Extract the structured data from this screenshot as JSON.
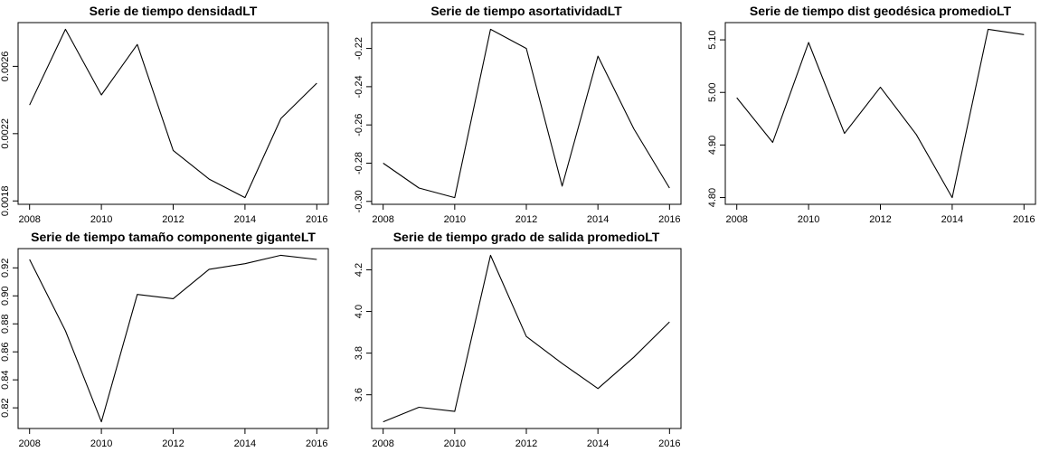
{
  "chart_data": [
    {
      "type": "line",
      "title": "Serie de tiempo densidadLT",
      "x": [
        2008,
        2009,
        2010,
        2011,
        2012,
        2013,
        2014,
        2015,
        2016
      ],
      "values": [
        0.00237,
        0.00282,
        0.00243,
        0.00273,
        0.0021,
        0.00193,
        0.00182,
        0.00229,
        0.0025
      ],
      "xlim": [
        2008,
        2016
      ],
      "ylim": [
        0.00182,
        0.00282
      ],
      "xticks": [
        2008,
        2010,
        2012,
        2014,
        2016
      ],
      "yticks": [
        0.0018,
        0.0022,
        0.0026
      ],
      "ytick_labels": [
        "0.0018",
        "0.0022",
        "0.0026"
      ]
    },
    {
      "type": "line",
      "title": "Serie de tiempo asortatividadLT",
      "x": [
        2008,
        2009,
        2010,
        2011,
        2012,
        2013,
        2014,
        2015,
        2016
      ],
      "values": [
        -0.28,
        -0.293,
        -0.298,
        -0.21,
        -0.22,
        -0.292,
        -0.224,
        -0.262,
        -0.293
      ],
      "xlim": [
        2008,
        2016
      ],
      "ylim": [
        -0.298,
        -0.21
      ],
      "xticks": [
        2008,
        2010,
        2012,
        2014,
        2016
      ],
      "yticks": [
        -0.3,
        -0.28,
        -0.26,
        -0.24,
        -0.22
      ],
      "ytick_labels": [
        "-0.30",
        "-0.28",
        "-0.26",
        "-0.24",
        "-0.22"
      ]
    },
    {
      "type": "line",
      "title": "Serie de tiempo dist geodésica promedioLT",
      "x": [
        2008,
        2009,
        2010,
        2011,
        2012,
        2013,
        2014,
        2015,
        2016
      ],
      "values": [
        4.99,
        4.905,
        5.095,
        4.922,
        5.01,
        4.92,
        4.8,
        5.12,
        5.11
      ],
      "xlim": [
        2008,
        2016
      ],
      "ylim": [
        4.8,
        5.12
      ],
      "xticks": [
        2008,
        2010,
        2012,
        2014,
        2016
      ],
      "yticks": [
        4.8,
        4.9,
        5.0,
        5.1
      ],
      "ytick_labels": [
        "4.80",
        "4.90",
        "5.00",
        "5.10"
      ]
    },
    {
      "type": "line",
      "title": "Serie de tiempo tamaño componente giganteLT",
      "x": [
        2008,
        2009,
        2010,
        2011,
        2012,
        2013,
        2014,
        2015,
        2016
      ],
      "values": [
        0.926,
        0.875,
        0.81,
        0.901,
        0.898,
        0.919,
        0.923,
        0.929,
        0.926
      ],
      "xlim": [
        2008,
        2016
      ],
      "ylim": [
        0.81,
        0.929
      ],
      "xticks": [
        2008,
        2010,
        2012,
        2014,
        2016
      ],
      "yticks": [
        0.82,
        0.84,
        0.86,
        0.88,
        0.9,
        0.92
      ],
      "ytick_labels": [
        "0.82",
        "0.84",
        "0.86",
        "0.88",
        "0.90",
        "0.92"
      ]
    },
    {
      "type": "line",
      "title": "Serie de tiempo grado de salida promedioLT",
      "x": [
        2008,
        2009,
        2010,
        2011,
        2012,
        2013,
        2014,
        2015,
        2016
      ],
      "values": [
        3.47,
        3.54,
        3.52,
        4.27,
        3.88,
        3.75,
        3.63,
        3.78,
        3.95
      ],
      "xlim": [
        2008,
        2016
      ],
      "ylim": [
        3.47,
        4.27
      ],
      "xticks": [
        2008,
        2010,
        2012,
        2014,
        2016
      ],
      "yticks": [
        3.6,
        3.8,
        4.0,
        4.2
      ],
      "ytick_labels": [
        "3.6",
        "3.8",
        "4.0",
        "4.2"
      ]
    }
  ]
}
